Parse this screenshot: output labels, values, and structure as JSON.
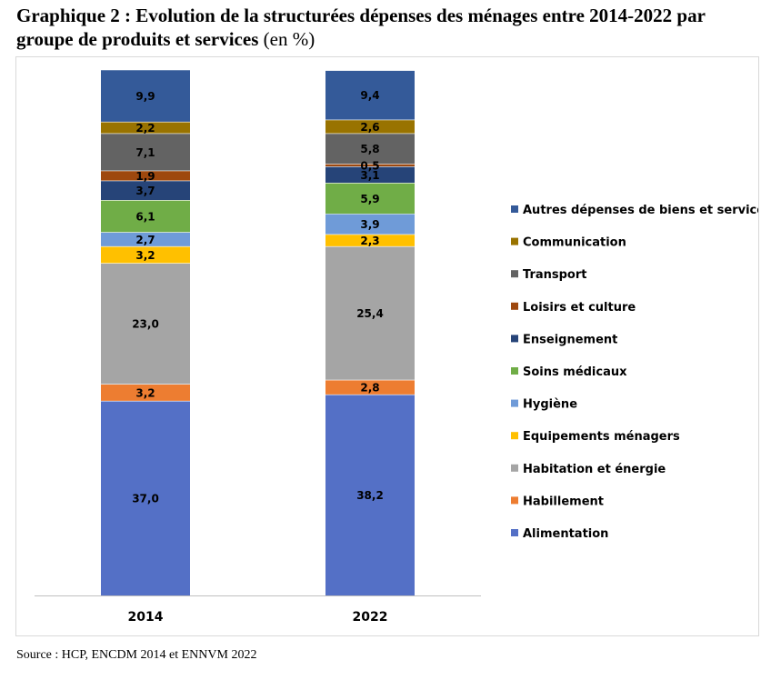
{
  "title": {
    "bold": "Graphique 2 : Evolution de la structurées dépenses des ménages entre 2014-2022 par groupe de produits et services",
    "normal": " (en %)"
  },
  "source": "Source : HCP, ENCDM 2014 et ENNVM 2022",
  "chart_data": {
    "type": "bar",
    "stacked": true,
    "categories": [
      "2014",
      "2022"
    ],
    "series": [
      {
        "name": "Alimentation",
        "color": "#5470c6",
        "values": [
          37.0,
          38.2
        ],
        "labels": [
          "37,0",
          "38,2"
        ]
      },
      {
        "name": "Habillement",
        "color": "#ed7d31",
        "values": [
          3.2,
          2.8
        ],
        "labels": [
          "3,2",
          "2,8"
        ]
      },
      {
        "name": "Habitation et énergie",
        "color": "#a5a5a5",
        "values": [
          23.0,
          25.4
        ],
        "labels": [
          "23,0",
          "25,4"
        ]
      },
      {
        "name": "Equipements ménagers",
        "color": "#ffc000",
        "values": [
          3.2,
          2.3
        ],
        "labels": [
          "3,2",
          "2,3"
        ]
      },
      {
        "name": "Hygiène",
        "color": "#6f9bd8",
        "values": [
          2.7,
          3.9
        ],
        "labels": [
          "2,7",
          "3,9"
        ]
      },
      {
        "name": "Soins médicaux",
        "color": "#70ad47",
        "values": [
          6.1,
          5.9
        ],
        "labels": [
          "6,1",
          "5,9"
        ]
      },
      {
        "name": "Enseignement",
        "color": "#264478",
        "values": [
          3.7,
          3.1
        ],
        "labels": [
          "3,7",
          "3,1"
        ]
      },
      {
        "name": "Loisirs et culture",
        "color": "#9e480e",
        "values": [
          1.9,
          0.5
        ],
        "labels": [
          "1,9",
          "0,5"
        ]
      },
      {
        "name": "Transport",
        "color": "#636363",
        "values": [
          7.1,
          5.8
        ],
        "labels": [
          "7,1",
          "5,8"
        ]
      },
      {
        "name": "Communication",
        "color": "#997300",
        "values": [
          2.2,
          2.6
        ],
        "labels": [
          "2,2",
          "2,6"
        ]
      },
      {
        "name": "Autres dépenses de biens et services",
        "color": "#345a99",
        "values": [
          9.9,
          9.4
        ],
        "labels": [
          "9,9",
          "9,4"
        ]
      }
    ],
    "ylim": [
      0,
      100
    ],
    "grid": false,
    "legend_position": "right"
  }
}
